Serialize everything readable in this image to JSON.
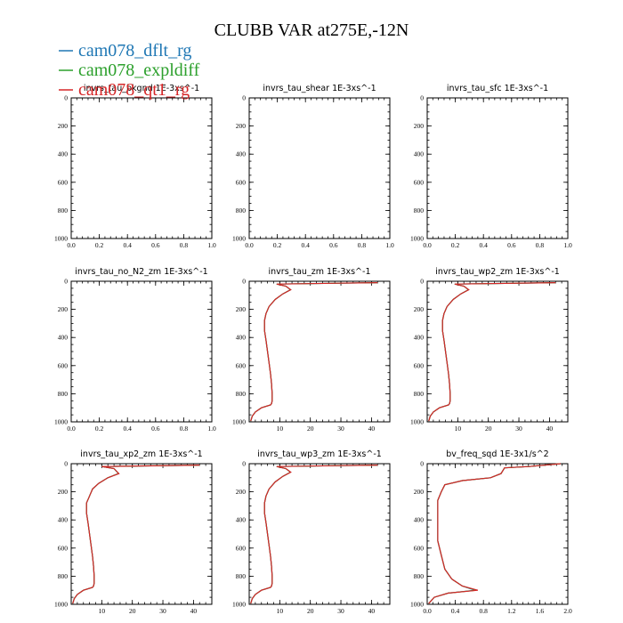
{
  "figure": {
    "title": "CLUBB VAR at275E,-12N"
  },
  "colors": {
    "cam078_dflt_rg": "#1f77b4",
    "cam078_expldiff": "#2ca02c",
    "cam078_qt1_rg": "#d62728"
  },
  "legend": [
    {
      "name": "cam078_dflt_rg",
      "color": "#1f77b4"
    },
    {
      "name": "cam078_expldiff",
      "color": "#2ca02c"
    },
    {
      "name": "cam078_qt1_rg",
      "color": "#d62728"
    }
  ],
  "chart_data": [
    {
      "type": "line",
      "title": "invrs_tau_bkgnd",
      "units": "1E-3xs^-1",
      "xlim": [
        0,
        1
      ],
      "ylim": [
        1000,
        0
      ],
      "xticks": [
        0.0,
        0.2,
        0.4,
        0.6,
        0.8,
        1.0
      ],
      "xtick_labels": [
        "0.0",
        "0.2",
        "0.4",
        "0.6",
        "0.8",
        "1.0"
      ],
      "yticks": [
        0,
        200,
        400,
        600,
        800,
        1000
      ],
      "series": []
    },
    {
      "type": "line",
      "title": "invrs_tau_shear",
      "units": "1E-3xs^-1",
      "xlim": [
        0,
        1
      ],
      "ylim": [
        1000,
        0
      ],
      "xticks": [
        0.0,
        0.2,
        0.4,
        0.6,
        0.8,
        1.0
      ],
      "xtick_labels": [
        "0.0",
        "0.2",
        "0.4",
        "0.6",
        "0.8",
        "1.0"
      ],
      "yticks": [
        0,
        200,
        400,
        600,
        800,
        1000
      ],
      "series": []
    },
    {
      "type": "line",
      "title": "invrs_tau_sfc",
      "units": "1E-3xs^-1",
      "xlim": [
        0,
        1
      ],
      "ylim": [
        1000,
        0
      ],
      "xticks": [
        0.0,
        0.2,
        0.4,
        0.6,
        0.8,
        1.0
      ],
      "xtick_labels": [
        "0.0",
        "0.2",
        "0.4",
        "0.6",
        "0.8",
        "1.0"
      ],
      "yticks": [
        0,
        200,
        400,
        600,
        800,
        1000
      ],
      "series": []
    },
    {
      "type": "line",
      "title": "invrs_tau_no_N2_zm",
      "units": "1E-3xs^-1",
      "xlim": [
        0,
        1
      ],
      "ylim": [
        1000,
        0
      ],
      "xticks": [
        0.0,
        0.2,
        0.4,
        0.6,
        0.8,
        1.0
      ],
      "xtick_labels": [
        "0.0",
        "0.2",
        "0.4",
        "0.6",
        "0.8",
        "1.0"
      ],
      "yticks": [
        0,
        200,
        400,
        600,
        800,
        1000
      ],
      "series": []
    },
    {
      "type": "line",
      "title": "invrs_tau_zm",
      "units": "1E-3xs^-1",
      "xlim": [
        0,
        46
      ],
      "ylim": [
        1000,
        0
      ],
      "xticks": [
        10,
        20,
        30,
        40
      ],
      "xtick_labels": [
        "10",
        "20",
        "30",
        "40"
      ],
      "yticks": [
        0,
        200,
        400,
        600,
        800,
        1000
      ],
      "series": [
        {
          "name": "cam078_dflt_rg",
          "color": "#1f77b4",
          "x": [
            42,
            9,
            12,
            13.5,
            11,
            8.5,
            6.5,
            5.5,
            5,
            5,
            5.5,
            6,
            6.5,
            7,
            7.3,
            7.5,
            7.5,
            7.3,
            7,
            4,
            2,
            1,
            0.5
          ],
          "y": [
            10,
            20,
            35,
            60,
            90,
            130,
            180,
            230,
            280,
            350,
            420,
            500,
            580,
            660,
            730,
            800,
            850,
            870,
            880,
            900,
            930,
            960,
            995
          ]
        },
        {
          "name": "cam078_expldiff",
          "color": "#2ca02c",
          "x": [
            42,
            9,
            12,
            13.5,
            11,
            8.5,
            6.5,
            5.5,
            5,
            5,
            5.5,
            6,
            6.5,
            7,
            7.3,
            7.5,
            7.5,
            7.3,
            7,
            4,
            2,
            1,
            0.5
          ],
          "y": [
            10,
            20,
            35,
            60,
            90,
            130,
            180,
            230,
            280,
            350,
            420,
            500,
            580,
            660,
            730,
            800,
            850,
            870,
            880,
            900,
            930,
            960,
            995
          ]
        },
        {
          "name": "cam078_qt1_rg",
          "color": "#d62728",
          "x": [
            42,
            9,
            12,
            13.6,
            11,
            8.5,
            6.5,
            5.5,
            5,
            5,
            5.5,
            6,
            6.5,
            7,
            7.3,
            7.5,
            7.5,
            7.3,
            7,
            4,
            2,
            1,
            0.5
          ],
          "y": [
            10,
            20,
            35,
            60,
            90,
            130,
            180,
            230,
            280,
            350,
            420,
            500,
            580,
            660,
            730,
            800,
            850,
            870,
            880,
            900,
            930,
            960,
            995
          ]
        }
      ]
    },
    {
      "type": "line",
      "title": "invrs_tau_wp2_zm",
      "units": "1E-3xs^-1",
      "xlim": [
        0,
        46
      ],
      "ylim": [
        1000,
        0
      ],
      "xticks": [
        10,
        20,
        30,
        40
      ],
      "xtick_labels": [
        "10",
        "20",
        "30",
        "40"
      ],
      "yticks": [
        0,
        200,
        400,
        600,
        800,
        1000
      ],
      "series": [
        {
          "name": "cam078_dflt_rg",
          "color": "#1f77b4",
          "x": [
            42,
            9,
            12,
            13.5,
            11,
            8.5,
            6.5,
            5.5,
            5,
            5,
            5.5,
            6,
            6.5,
            7,
            7.3,
            7.5,
            7.5,
            7.3,
            7,
            4,
            2,
            1,
            0.5
          ],
          "y": [
            10,
            20,
            35,
            60,
            90,
            130,
            180,
            230,
            280,
            350,
            420,
            500,
            580,
            660,
            730,
            800,
            850,
            870,
            880,
            900,
            930,
            960,
            995
          ]
        },
        {
          "name": "cam078_expldiff",
          "color": "#2ca02c",
          "x": [
            42,
            9,
            12,
            13.5,
            11,
            8.5,
            6.5,
            5.5,
            5,
            5,
            5.5,
            6,
            6.5,
            7,
            7.3,
            7.5,
            7.5,
            7.3,
            7,
            4,
            2,
            1,
            0.5
          ],
          "y": [
            10,
            20,
            35,
            60,
            90,
            130,
            180,
            230,
            280,
            350,
            420,
            500,
            580,
            660,
            730,
            800,
            850,
            870,
            880,
            900,
            930,
            960,
            995
          ]
        },
        {
          "name": "cam078_qt1_rg",
          "color": "#d62728",
          "x": [
            42,
            9,
            12,
            13.6,
            11,
            8.5,
            6.5,
            5.5,
            5,
            5,
            5.5,
            6,
            6.5,
            7,
            7.3,
            7.5,
            7.5,
            7.3,
            7,
            4,
            2,
            1,
            0.5
          ],
          "y": [
            10,
            20,
            35,
            60,
            90,
            130,
            180,
            230,
            280,
            350,
            420,
            500,
            580,
            660,
            730,
            800,
            850,
            870,
            880,
            900,
            930,
            960,
            995
          ]
        }
      ]
    },
    {
      "type": "line",
      "title": "invrs_tau_xp2_zm",
      "units": "1E-3xs^-1",
      "xlim": [
        0,
        46
      ],
      "ylim": [
        1000,
        0
      ],
      "xticks": [
        10,
        20,
        30,
        40
      ],
      "xtick_labels": [
        "10",
        "20",
        "30",
        "40"
      ],
      "yticks": [
        0,
        200,
        400,
        600,
        800,
        1000
      ],
      "series": [
        {
          "name": "cam078_dflt_rg",
          "color": "#1f77b4",
          "x": [
            42,
            10,
            14,
            15.5,
            12,
            9,
            7,
            6,
            5,
            5,
            5.5,
            6,
            6.5,
            7,
            7.3,
            7.5,
            7.5,
            7.3,
            7,
            4,
            2,
            1,
            0.5
          ],
          "y": [
            10,
            20,
            35,
            70,
            100,
            140,
            180,
            230,
            280,
            350,
            420,
            500,
            580,
            660,
            730,
            800,
            850,
            870,
            880,
            900,
            930,
            960,
            995
          ]
        },
        {
          "name": "cam078_expldiff",
          "color": "#2ca02c",
          "x": [
            42,
            10,
            14,
            15.5,
            12,
            9,
            7,
            6,
            5,
            5,
            5.5,
            6,
            6.5,
            7,
            7.3,
            7.5,
            7.5,
            7.3,
            7,
            4,
            2,
            1,
            0.5
          ],
          "y": [
            10,
            20,
            35,
            70,
            100,
            140,
            180,
            230,
            280,
            350,
            420,
            500,
            580,
            660,
            730,
            800,
            850,
            870,
            880,
            900,
            930,
            960,
            995
          ]
        },
        {
          "name": "cam078_qt1_rg",
          "color": "#d62728",
          "x": [
            42,
            10,
            14,
            15.6,
            12,
            9,
            7,
            6,
            5,
            5,
            5.5,
            6,
            6.5,
            7,
            7.3,
            7.5,
            7.5,
            7.3,
            7,
            4,
            2,
            1,
            0.5
          ],
          "y": [
            10,
            20,
            35,
            70,
            100,
            140,
            180,
            230,
            280,
            350,
            420,
            500,
            580,
            660,
            730,
            800,
            850,
            870,
            880,
            900,
            930,
            960,
            995
          ]
        }
      ]
    },
    {
      "type": "line",
      "title": "invrs_tau_wp3_zm",
      "units": "1E-3xs^-1",
      "xlim": [
        0,
        46
      ],
      "ylim": [
        1000,
        0
      ],
      "xticks": [
        10,
        20,
        30,
        40
      ],
      "xtick_labels": [
        "10",
        "20",
        "30",
        "40"
      ],
      "yticks": [
        0,
        200,
        400,
        600,
        800,
        1000
      ],
      "series": [
        {
          "name": "cam078_dflt_rg",
          "color": "#1f77b4",
          "x": [
            42,
            9,
            12,
            13.5,
            11,
            8.5,
            6.5,
            5.5,
            5,
            5,
            5.5,
            6,
            6.5,
            7,
            7.3,
            7.5,
            7.5,
            7.3,
            7,
            4,
            2,
            1,
            0.5
          ],
          "y": [
            10,
            20,
            35,
            60,
            90,
            130,
            180,
            230,
            280,
            350,
            420,
            500,
            580,
            660,
            730,
            800,
            850,
            870,
            880,
            900,
            930,
            960,
            995
          ]
        },
        {
          "name": "cam078_expldiff",
          "color": "#2ca02c",
          "x": [
            42,
            9,
            12,
            13.5,
            11,
            8.5,
            6.5,
            5.5,
            5,
            5,
            5.5,
            6,
            6.5,
            7,
            7.3,
            7.5,
            7.5,
            7.3,
            7,
            4,
            2,
            1,
            0.5
          ],
          "y": [
            10,
            20,
            35,
            60,
            90,
            130,
            180,
            230,
            280,
            350,
            420,
            500,
            580,
            660,
            730,
            800,
            850,
            870,
            880,
            900,
            930,
            960,
            995
          ]
        },
        {
          "name": "cam078_qt1_rg",
          "color": "#d62728",
          "x": [
            42,
            9,
            12,
            13.6,
            11,
            8.5,
            6.5,
            5.5,
            5,
            5,
            5.5,
            6,
            6.5,
            7,
            7.3,
            7.5,
            7.5,
            7.3,
            7,
            4,
            2,
            1,
            0.5
          ],
          "y": [
            10,
            20,
            35,
            60,
            90,
            130,
            180,
            230,
            280,
            350,
            420,
            500,
            580,
            660,
            730,
            800,
            850,
            870,
            880,
            900,
            930,
            960,
            995
          ]
        }
      ]
    },
    {
      "type": "line",
      "title": "bv_freq_sqd",
      "units": "1E-3x1/s^2",
      "xlim": [
        0,
        2
      ],
      "ylim": [
        1000,
        0
      ],
      "xticks": [
        0.0,
        0.4,
        0.8,
        1.2,
        1.6,
        2.0
      ],
      "xtick_labels": [
        "0.0",
        "0.4",
        "0.8",
        "1.2",
        "1.6",
        "2.0"
      ],
      "yticks": [
        0,
        200,
        400,
        600,
        800,
        1000
      ],
      "series": [
        {
          "name": "cam078_dflt_rg",
          "color": "#1f77b4",
          "x": [
            1.9,
            1.45,
            1.1,
            1.05,
            0.9,
            0.5,
            0.25,
            0.2,
            0.15,
            0.15,
            0.15,
            0.15,
            0.2,
            0.25,
            0.35,
            0.5,
            0.68,
            0.3,
            0.1,
            0.02
          ],
          "y": [
            0,
            20,
            30,
            70,
            100,
            120,
            150,
            200,
            260,
            350,
            450,
            550,
            650,
            750,
            820,
            870,
            900,
            920,
            950,
            995
          ]
        },
        {
          "name": "cam078_expldiff",
          "color": "#2ca02c",
          "x": [
            1.9,
            1.45,
            1.1,
            1.05,
            0.9,
            0.5,
            0.25,
            0.2,
            0.15,
            0.15,
            0.15,
            0.15,
            0.2,
            0.25,
            0.35,
            0.5,
            0.7,
            0.3,
            0.1,
            0.02
          ],
          "y": [
            0,
            20,
            30,
            70,
            100,
            120,
            150,
            200,
            260,
            350,
            450,
            550,
            650,
            750,
            820,
            870,
            900,
            920,
            950,
            995
          ]
        },
        {
          "name": "cam078_qt1_rg",
          "color": "#d62728",
          "x": [
            1.9,
            1.45,
            1.1,
            1.05,
            0.9,
            0.5,
            0.25,
            0.2,
            0.15,
            0.15,
            0.15,
            0.15,
            0.2,
            0.25,
            0.35,
            0.5,
            0.72,
            0.3,
            0.1,
            0.02
          ],
          "y": [
            0,
            20,
            30,
            70,
            100,
            120,
            150,
            200,
            260,
            350,
            450,
            550,
            650,
            750,
            820,
            870,
            900,
            920,
            950,
            995
          ]
        }
      ]
    }
  ]
}
